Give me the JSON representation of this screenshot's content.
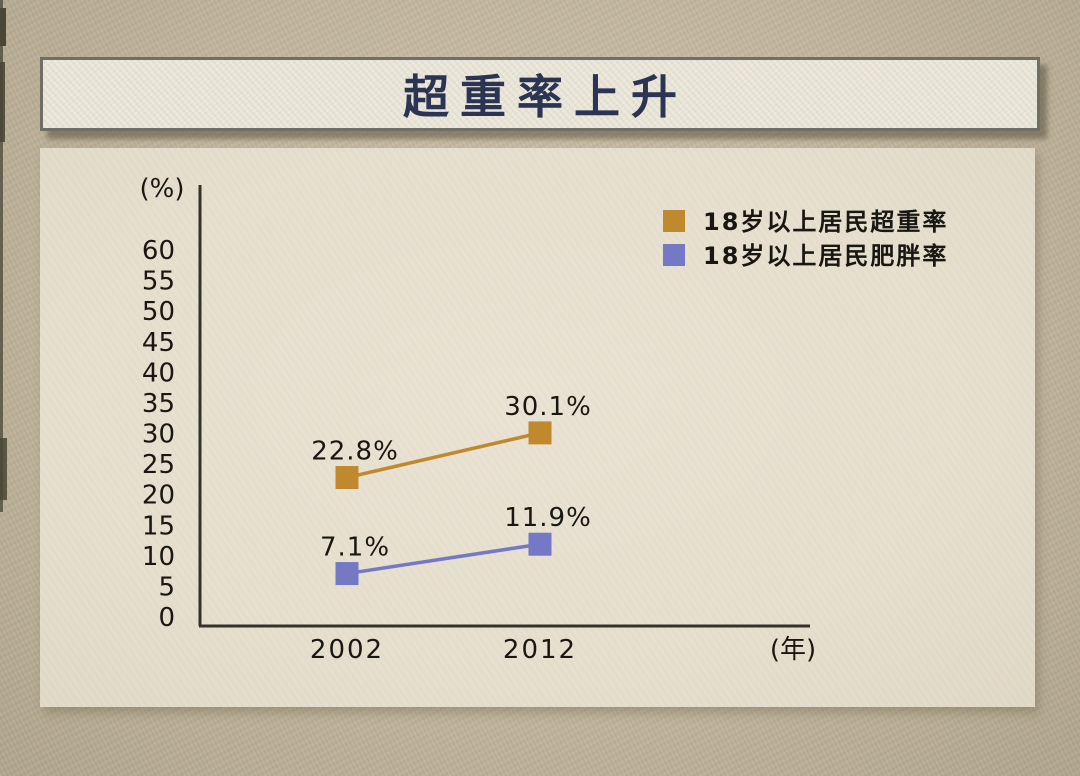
{
  "page": {
    "title": "超重率上升"
  },
  "chart_data": {
    "type": "line",
    "categories": [
      "2002",
      "2012"
    ],
    "x_unit_label": "(年)",
    "y_unit_label": "(%)",
    "ylim": [
      0,
      60
    ],
    "ytick_step": 5,
    "yticks": [
      0,
      5,
      10,
      15,
      20,
      25,
      30,
      35,
      40,
      45,
      50,
      55,
      60
    ],
    "grid": false,
    "legend_position": "top-right",
    "series": [
      {
        "name": "18岁以上居民超重率",
        "color": "#c0892d",
        "marker": "square",
        "values": [
          22.8,
          30.1
        ],
        "point_labels": [
          "22.8%",
          "30.1%"
        ]
      },
      {
        "name": "18岁以上居民肥胖率",
        "color": "#7478c5",
        "marker": "square",
        "values": [
          7.1,
          11.9
        ],
        "point_labels": [
          "7.1%",
          "11.9%"
        ]
      }
    ]
  },
  "decor": {
    "axis_color": "#33322b",
    "text_color": "#181712",
    "title_color": "#2b3452"
  }
}
